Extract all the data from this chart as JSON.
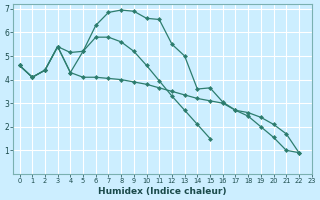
{
  "title": "",
  "xlabel": "Humidex (Indice chaleur)",
  "ylabel": "",
  "background_color": "#cceeff",
  "grid_color": "#ffffff",
  "line_color": "#2d7d6e",
  "xlim": [
    -0.5,
    23
  ],
  "ylim": [
    0,
    7.2
  ],
  "yticks": [
    1,
    2,
    3,
    4,
    5,
    6,
    7
  ],
  "xticks": [
    0,
    1,
    2,
    3,
    4,
    5,
    6,
    7,
    8,
    9,
    10,
    11,
    12,
    13,
    14,
    15,
    16,
    17,
    18,
    19,
    20,
    21,
    22,
    23
  ],
  "series": [
    {
      "x": [
        0,
        1,
        2,
        3,
        4,
        5,
        6,
        7,
        8,
        9,
        10,
        11,
        12,
        13,
        14,
        15,
        16,
        17,
        18,
        19,
        20,
        21,
        22
      ],
      "y": [
        4.6,
        4.1,
        4.4,
        5.4,
        4.3,
        5.2,
        6.3,
        6.85,
        6.95,
        6.9,
        6.6,
        6.55,
        5.5,
        5.0,
        3.6,
        3.65,
        3.05,
        2.7,
        2.45,
        2.0,
        1.55,
        1.0,
        0.9
      ]
    },
    {
      "x": [
        0,
        1,
        2,
        3,
        4,
        5,
        6,
        7,
        8,
        9,
        10,
        11,
        12,
        13,
        14,
        15,
        16,
        17,
        18,
        19,
        20,
        21,
        22
      ],
      "y": [
        4.6,
        4.1,
        4.4,
        5.4,
        4.3,
        4.1,
        4.1,
        4.05,
        4.0,
        3.9,
        3.8,
        3.65,
        3.5,
        3.35,
        3.2,
        3.1,
        3.0,
        2.7,
        2.6,
        2.4,
        2.1,
        1.7,
        0.9
      ]
    },
    {
      "x": [
        0,
        1,
        2,
        3,
        4,
        5,
        6,
        7,
        8,
        9,
        10,
        11,
        12,
        13,
        14,
        15
      ],
      "y": [
        4.6,
        4.1,
        4.4,
        5.4,
        5.15,
        5.2,
        5.8,
        5.8,
        5.6,
        5.2,
        4.6,
        3.95,
        3.3,
        2.7,
        2.1,
        1.5
      ]
    }
  ]
}
